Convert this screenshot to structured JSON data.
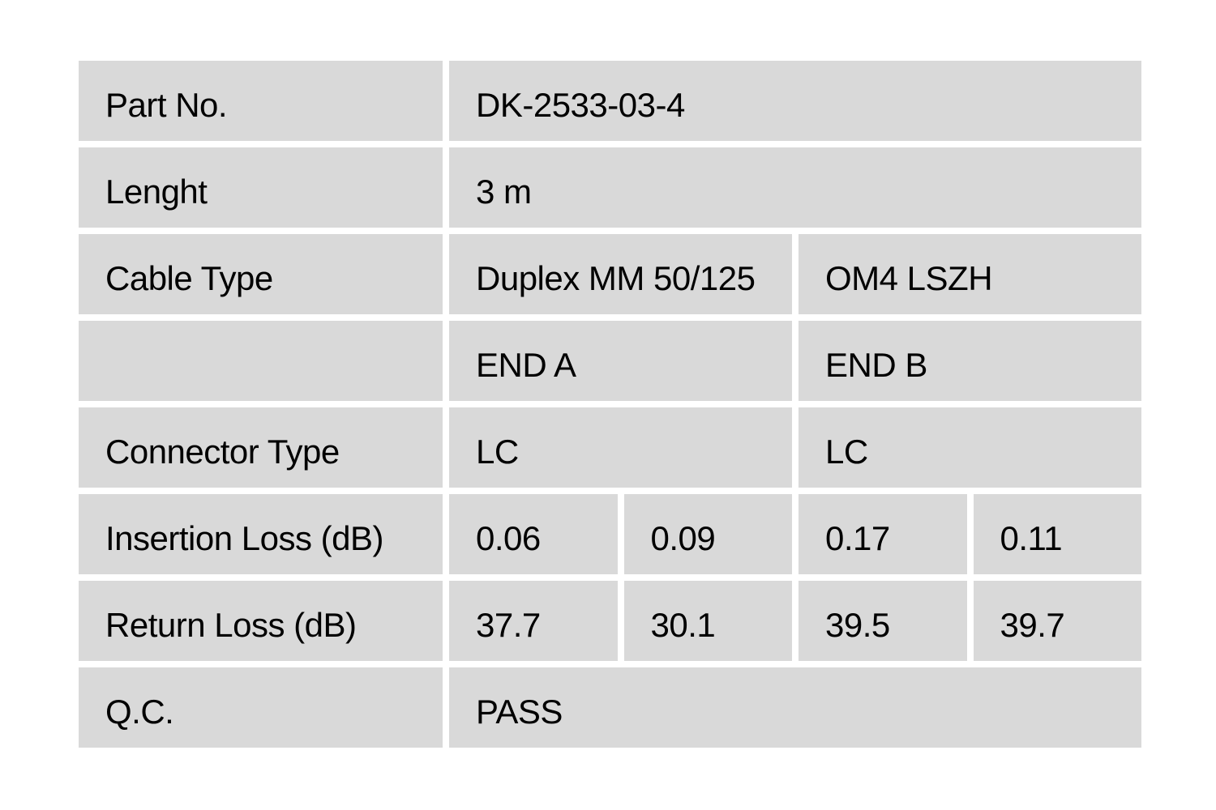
{
  "colors": {
    "page_background": "#ffffff",
    "cell_background": "#d9d9d9",
    "text": "#000000"
  },
  "table": {
    "rows": [
      {
        "label": "Part No.",
        "values": [
          {
            "text": "DK-2533-03-4"
          }
        ]
      },
      {
        "label": "Lenght",
        "values": [
          {
            "text": "3 m"
          }
        ]
      },
      {
        "label": "Cable Type",
        "values": [
          {
            "text": "Duplex MM 50/125"
          },
          {
            "text": "OM4 LSZH"
          }
        ]
      },
      {
        "label": "",
        "values": [
          {
            "text": "END A"
          },
          {
            "text": "END B"
          }
        ]
      },
      {
        "label": "Connector Type",
        "values": [
          {
            "text": "LC"
          },
          {
            "text": "LC"
          }
        ]
      },
      {
        "label": "Insertion Loss (dB)",
        "values": [
          {
            "text": "0.06"
          },
          {
            "text": "0.09"
          },
          {
            "text": "0.17"
          },
          {
            "text": "0.11"
          }
        ]
      },
      {
        "label": "Return Loss (dB)",
        "values": [
          {
            "text": "37.7"
          },
          {
            "text": "30.1"
          },
          {
            "text": "39.5"
          },
          {
            "text": "39.7"
          }
        ]
      },
      {
        "label": "Q.C.",
        "values": [
          {
            "text": "PASS"
          }
        ]
      }
    ]
  }
}
